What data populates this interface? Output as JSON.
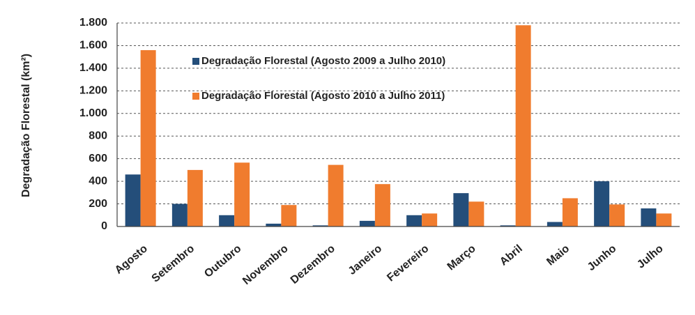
{
  "chart_data": {
    "type": "bar",
    "ylabel": "Degradação Florestal (km²)",
    "categories": [
      "Agosto",
      "Setembro",
      "Outubro",
      "Novembro",
      "Dezembro",
      "Janeiro",
      "Fevereiro",
      "Março",
      "Abril",
      "Maio",
      "Junho",
      "Julho"
    ],
    "series": [
      {
        "name": "Degradação Florestal (Agosto 2009 a Julho 2010)",
        "color": "#244e7a",
        "values": [
          460,
          200,
          100,
          25,
          10,
          50,
          100,
          295,
          10,
          40,
          400,
          160
        ]
      },
      {
        "name": "Degradação Florestal (Agosto 2010 a Julho 2011)",
        "color": "#f07c2e",
        "values": [
          1560,
          500,
          565,
          190,
          545,
          375,
          115,
          220,
          1780,
          250,
          195,
          115
        ]
      }
    ],
    "ylim": [
      0,
      1800
    ],
    "yticks": [
      0,
      200,
      400,
      600,
      800,
      {
        "value": 1000,
        "label": "1.000"
      },
      {
        "value": 1200,
        "label": "1.200"
      },
      {
        "value": 1400,
        "label": "1.400"
      },
      {
        "value": 1600,
        "label": "1.600"
      },
      {
        "value": 1800,
        "label": "1.800"
      }
    ],
    "grid": true,
    "legend": "upper-left"
  }
}
